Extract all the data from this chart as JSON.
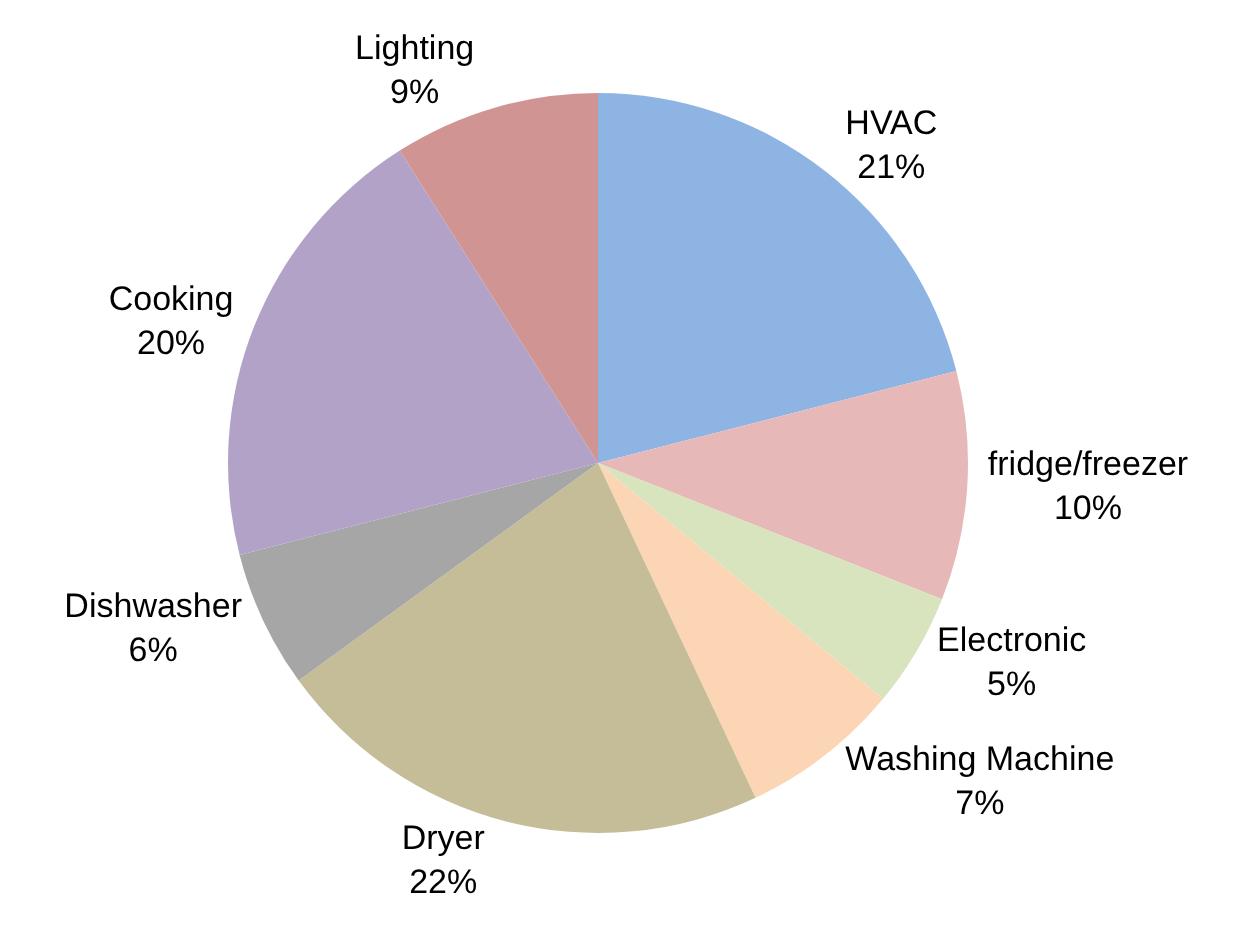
{
  "chart_data": {
    "type": "pie",
    "categories": [
      "HVAC",
      "fridge/freezer",
      "Electronic",
      "Washing Machine",
      "Dryer",
      "Dishwasher",
      "Cooking",
      "Lighting"
    ],
    "values": [
      21,
      10,
      5,
      7,
      22,
      6,
      20,
      9
    ],
    "value_labels": [
      "21%",
      "10%",
      "5%",
      "7%",
      "22%",
      "6%",
      "20%",
      "9%"
    ],
    "colors": [
      "#8eb4e3",
      "#e6b9b8",
      "#d7e4bd",
      "#fcd5b5",
      "#c4bd97",
      "#a6a6a6",
      "#b3a2c7",
      "#d09492"
    ],
    "legend": false
  }
}
